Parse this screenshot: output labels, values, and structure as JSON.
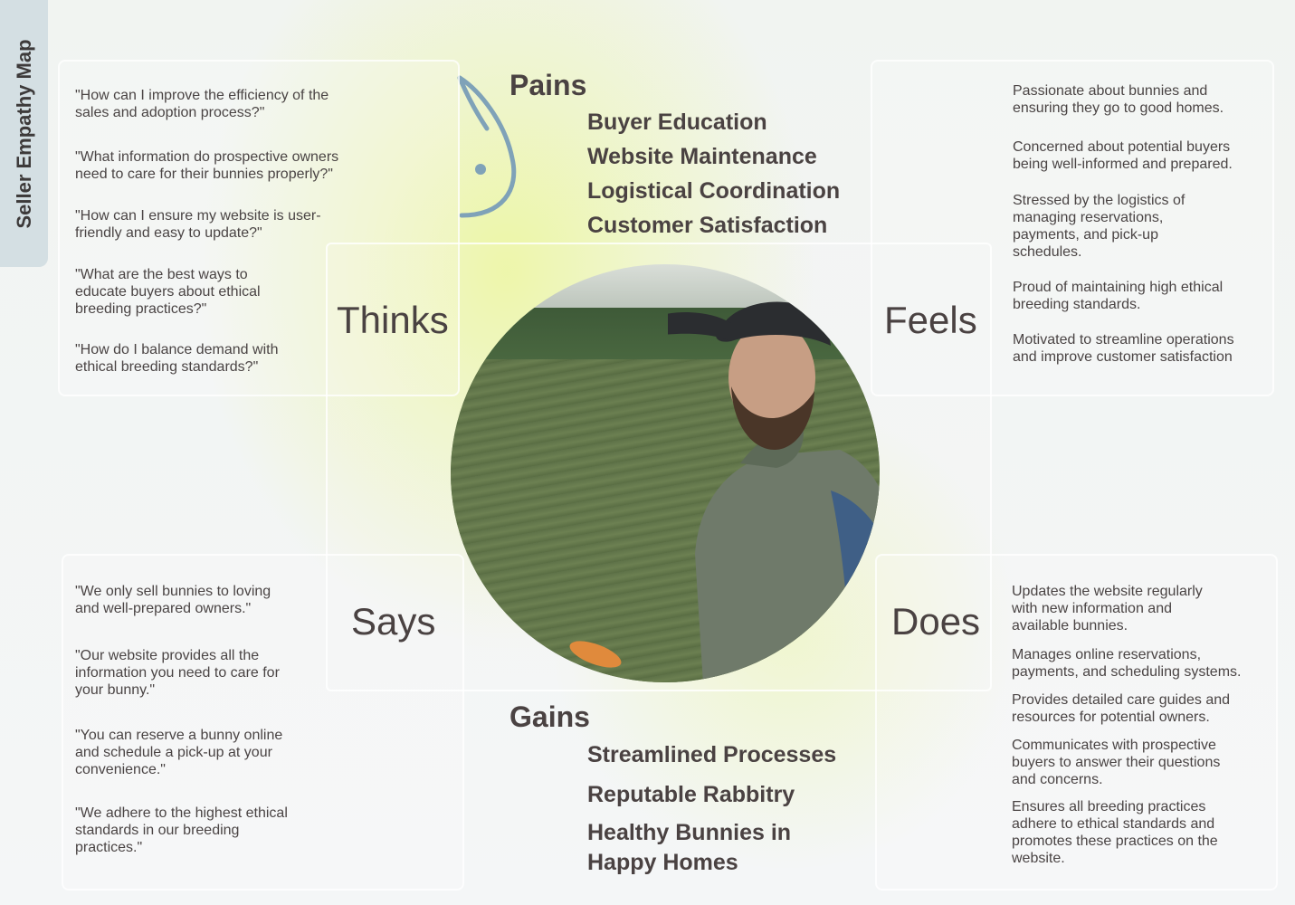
{
  "side_tab": {
    "label": "Seller Empathy Map"
  },
  "quadrants": {
    "thinks": {
      "label": "Thinks",
      "items": [
        "\"How can I improve the efficiency of the sales and adoption process?\"",
        "\"What information do prospective owners need to care for their bunnies properly?\"",
        "\"How can I ensure my website is user-friendly and easy to update?\"",
        "\"What are the best ways to educate buyers about ethical breeding practices?\"",
        "\"How do I balance demand with ethical breeding standards?\""
      ]
    },
    "feels": {
      "label": "Feels",
      "items": [
        "Passionate about bunnies and ensuring they go to good homes.",
        "Concerned about potential buyers being well-informed and prepared.",
        "Stressed by the logistics of managing reservations, payments, and pick-up schedules.",
        "Proud of maintaining high ethical breeding standards.",
        "Motivated to streamline operations and improve customer satisfaction"
      ]
    },
    "says": {
      "label": "Says",
      "items": [
        "\"We only sell bunnies to loving and well-prepared owners.\"",
        "\"Our website provides all the information you need to care for your bunny.\"",
        "\"You can reserve a bunny online and schedule a pick-up at your convenience.\"",
        "\"We adhere to the highest ethical standards in our breeding practices.\""
      ]
    },
    "does": {
      "label": "Does",
      "items": [
        "Updates the website regularly with new information and available bunnies.",
        "Manages online reservations, payments, and scheduling systems.",
        "Provides detailed care guides and resources for potential owners.",
        "Communicates with prospective buyers to answer their questions and concerns.",
        "Ensures all breeding practices adhere to ethical standards and promotes these practices on the website."
      ]
    }
  },
  "pains": {
    "title": "Pains",
    "items": [
      "Buyer Education",
      "Website Maintenance",
      "Logistical Coordination",
      "Customer Satisfaction"
    ]
  },
  "gains": {
    "title": "Gains",
    "items": [
      "Streamlined Processes",
      "Reputable Rabbitry",
      "Healthy Bunnies in Happy Homes"
    ]
  },
  "icons": {
    "logo": "rabbit-icon",
    "portrait": "seller-portrait-photo"
  },
  "colors": {
    "accent_yellow": "#eef6a0",
    "side_tab": "#d4dfe3",
    "text": "#4a4242",
    "rabbit_stroke": "#7fa2b8"
  }
}
